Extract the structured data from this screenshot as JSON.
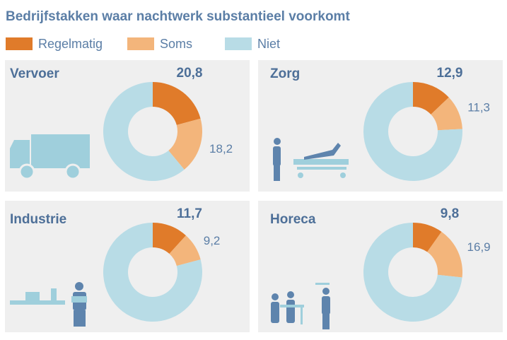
{
  "title": "Bedrijfstakken waar nachtwerk substantieel voorkomt",
  "legend": [
    {
      "name": "Regelmatig",
      "color": "#e07b2a"
    },
    {
      "name": "Soms",
      "color": "#f3b57b"
    },
    {
      "name": "Niet",
      "color": "#b8dce6"
    }
  ],
  "chart_data": [
    {
      "type": "pie",
      "title": "Vervoer",
      "values": [
        20.8,
        18.2,
        61.0
      ],
      "value_labels": [
        "20,8",
        "18,2",
        null
      ]
    },
    {
      "type": "pie",
      "title": "Zorg",
      "values": [
        12.9,
        11.3,
        75.8
      ],
      "value_labels": [
        "12,9",
        "11,3",
        null
      ]
    },
    {
      "type": "pie",
      "title": "Industrie",
      "values": [
        11.7,
        9.2,
        79.1
      ],
      "value_labels": [
        "11,7",
        "9,2",
        null
      ]
    },
    {
      "type": "pie",
      "title": "Horeca",
      "values": [
        9.8,
        16.9,
        73.3
      ],
      "value_labels": [
        "9,8",
        "16,9",
        null
      ]
    }
  ]
}
